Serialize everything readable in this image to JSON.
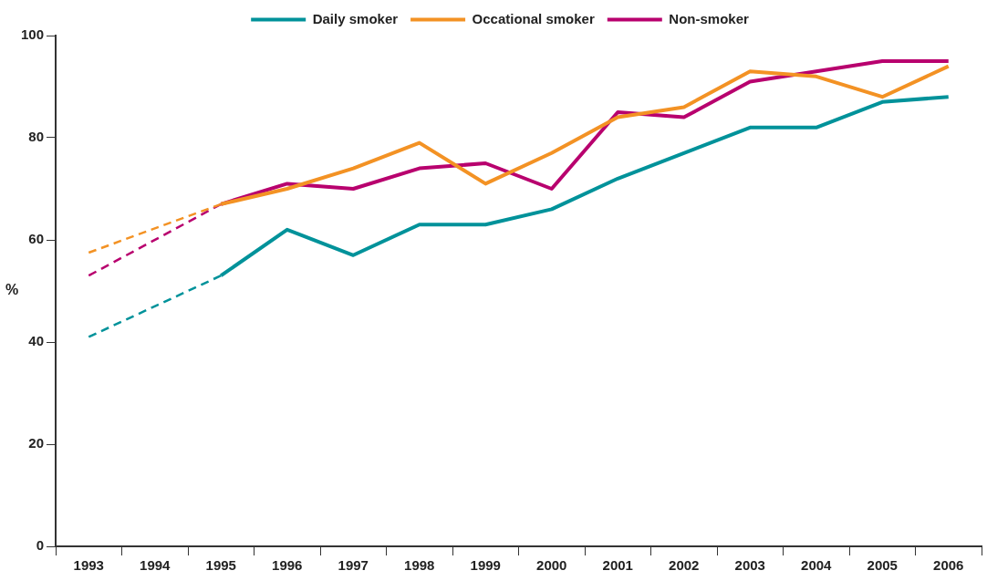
{
  "chart_data": {
    "type": "line",
    "ylabel": "%",
    "categories": [
      "1993",
      "1994",
      "1995",
      "1996",
      "1997",
      "1998",
      "1999",
      "2000",
      "2001",
      "2002",
      "2003",
      "2004",
      "2005",
      "2006"
    ],
    "series": [
      {
        "name": "Daily smoker",
        "color": "#00929a",
        "line_style": "solid",
        "values": [
          null,
          null,
          53,
          62,
          57,
          63,
          63,
          66,
          72,
          77,
          82,
          82,
          87,
          88
        ]
      },
      {
        "name": "Occational smoker",
        "color": "#f39224",
        "line_style": "solid",
        "values": [
          null,
          null,
          67,
          70,
          74,
          79,
          71,
          77,
          84,
          86,
          93,
          92,
          88,
          94
        ]
      },
      {
        "name": "Non-smoker",
        "color": "#b8006e",
        "line_style": "solid",
        "values": [
          null,
          null,
          67,
          71,
          70,
          74,
          75,
          70,
          85,
          84,
          91,
          93,
          95,
          95
        ]
      },
      {
        "color": "#00929a",
        "line_style": "dashed",
        "values": [
          41,
          null,
          53,
          null,
          null,
          null,
          null,
          null,
          null,
          null,
          null,
          null,
          null,
          null
        ]
      },
      {
        "color": "#f39224",
        "line_style": "dashed",
        "values": [
          57.5,
          null,
          67,
          null,
          null,
          null,
          null,
          null,
          null,
          null,
          null,
          null,
          null,
          null
        ]
      },
      {
        "color": "#b8006e",
        "line_style": "dashed",
        "values": [
          53,
          null,
          67,
          null,
          null,
          null,
          null,
          null,
          null,
          null,
          null,
          null,
          null,
          null
        ]
      }
    ],
    "ylim": [
      0,
      100
    ],
    "yticks": [
      0,
      20,
      40,
      60,
      80,
      100
    ],
    "grid": false,
    "legend": "top",
    "marker": "none"
  }
}
